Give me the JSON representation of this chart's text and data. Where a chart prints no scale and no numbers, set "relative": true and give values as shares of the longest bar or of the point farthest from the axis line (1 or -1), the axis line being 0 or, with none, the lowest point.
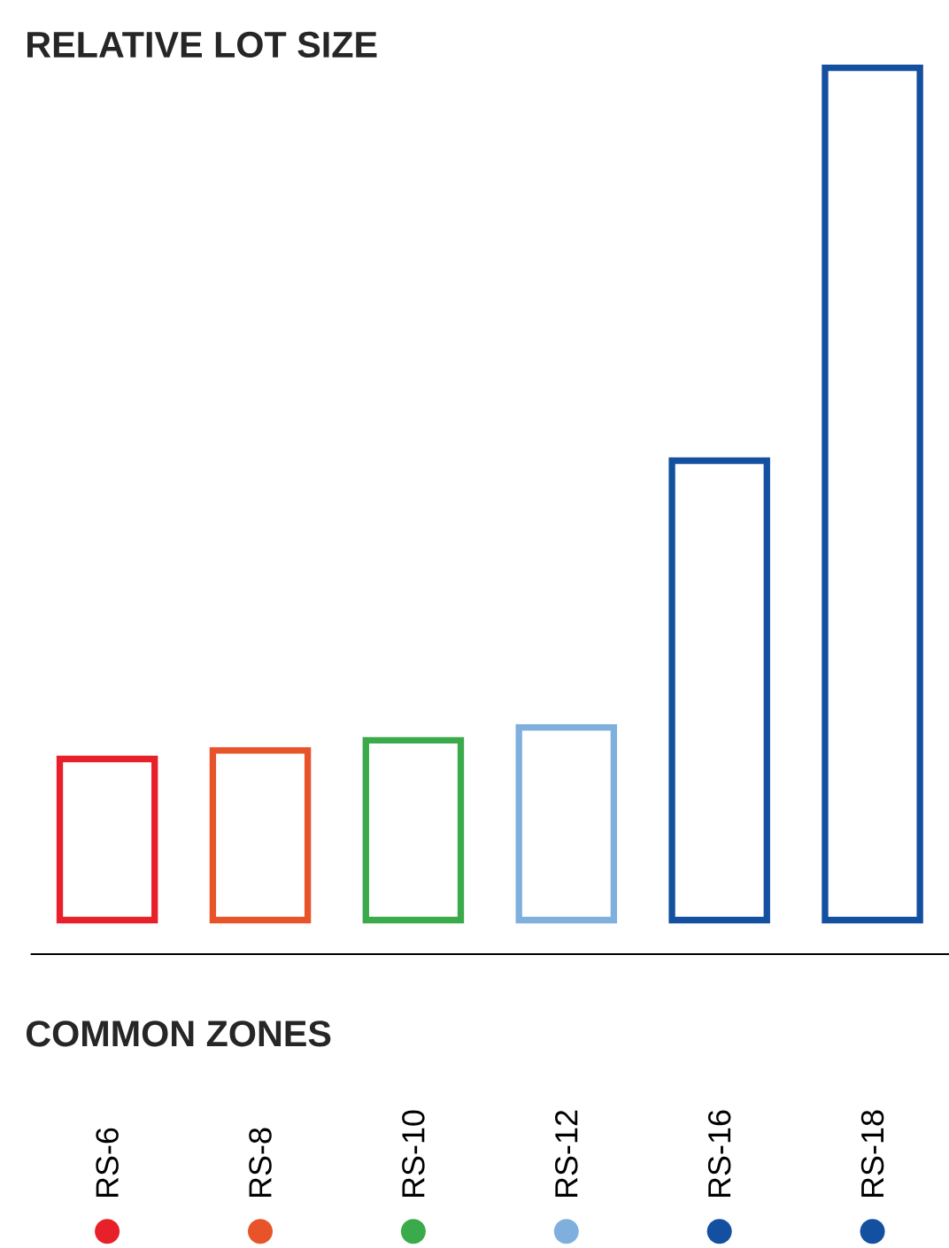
{
  "chart_data": {
    "type": "bar",
    "title": "RELATIVE LOT SIZE",
    "xlabel": "COMMON ZONES",
    "relative": true,
    "categories": [
      "RS-6",
      "RS-8",
      "RS-10",
      "RS-12",
      "RS-16",
      "RS-18"
    ],
    "values": [
      0.189,
      0.199,
      0.211,
      0.226,
      0.539,
      1
    ],
    "colors": [
      "#e8202a",
      "#e8542a",
      "#3aaa4a",
      "#7fb0dd",
      "#1450a0",
      "#1450a0"
    ]
  }
}
